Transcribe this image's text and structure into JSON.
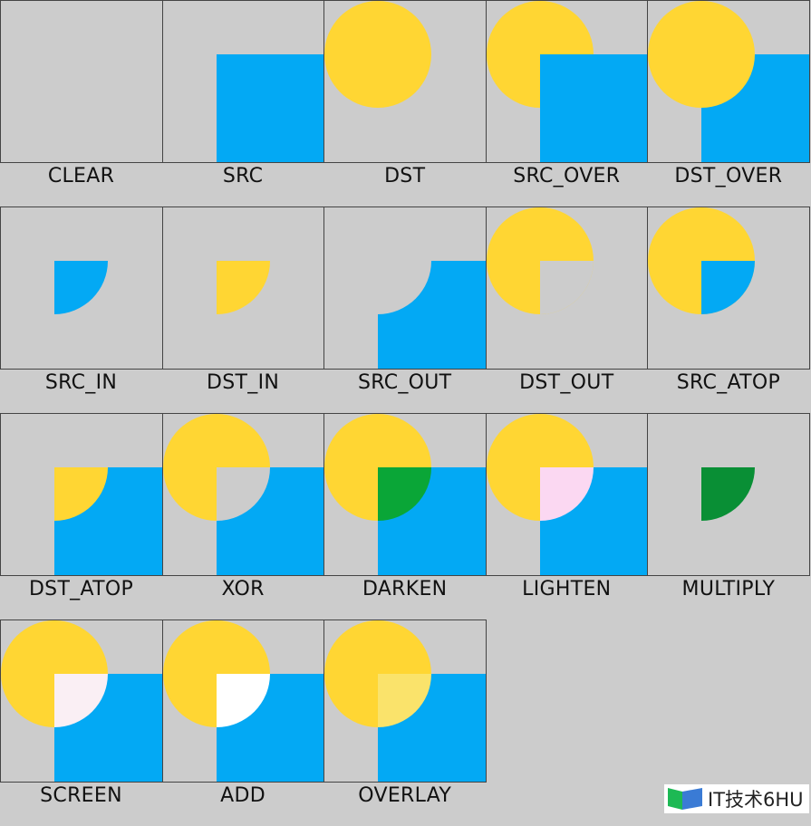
{
  "colors": {
    "background": "#cccccc",
    "dst": "#FFD633",
    "src": "#03A9F4",
    "border": "#444444"
  },
  "modes": [
    {
      "label": "CLEAR",
      "layers": []
    },
    {
      "label": "SRC",
      "layers": [
        [
          "square",
          "#03A9F4"
        ]
      ]
    },
    {
      "label": "DST",
      "layers": [
        [
          "circle",
          "#FFD633"
        ]
      ]
    },
    {
      "label": "SRC_OVER",
      "layers": [
        [
          "circle",
          "#FFD633"
        ],
        [
          "square",
          "#03A9F4"
        ]
      ]
    },
    {
      "label": "DST_OVER",
      "layers": [
        [
          "square",
          "#03A9F4"
        ],
        [
          "circle",
          "#FFD633"
        ]
      ]
    },
    {
      "label": "SRC_IN",
      "layers": [
        [
          "quarter",
          "#03A9F4"
        ]
      ]
    },
    {
      "label": "DST_IN",
      "layers": [
        [
          "quarter",
          "#FFD633"
        ]
      ]
    },
    {
      "label": "SRC_OUT",
      "layers": [
        [
          "square",
          "#03A9F4"
        ],
        [
          "quarter",
          "#cccccc"
        ]
      ]
    },
    {
      "label": "DST_OUT",
      "layers": [
        [
          "circle",
          "#FFD633"
        ],
        [
          "quarter",
          "#cccccc"
        ]
      ]
    },
    {
      "label": "SRC_ATOP",
      "layers": [
        [
          "circle",
          "#FFD633"
        ],
        [
          "quarter",
          "#03A9F4"
        ]
      ]
    },
    {
      "label": "DST_ATOP",
      "layers": [
        [
          "square",
          "#03A9F4"
        ],
        [
          "quarter",
          "#FFD633"
        ]
      ]
    },
    {
      "label": "XOR",
      "layers": [
        [
          "circle",
          "#FFD633"
        ],
        [
          "square",
          "#03A9F4"
        ],
        [
          "quarter",
          "#cccccc"
        ]
      ]
    },
    {
      "label": "DARKEN",
      "layers": [
        [
          "circle",
          "#FFD633"
        ],
        [
          "square",
          "#03A9F4"
        ],
        [
          "quarter",
          "#0AA637"
        ]
      ]
    },
    {
      "label": "LIGHTEN",
      "layers": [
        [
          "circle",
          "#FFD633"
        ],
        [
          "square",
          "#03A9F4"
        ],
        [
          "quarter",
          "#FBD8F2"
        ]
      ]
    },
    {
      "label": "MULTIPLY",
      "layers": [
        [
          "quarter",
          "#098F35"
        ]
      ]
    },
    {
      "label": "SCREEN",
      "layers": [
        [
          "circle",
          "#FFD633"
        ],
        [
          "square",
          "#03A9F4"
        ],
        [
          "quarter",
          "#FAEFF4"
        ]
      ]
    },
    {
      "label": "ADD",
      "layers": [
        [
          "circle",
          "#FFD633"
        ],
        [
          "square",
          "#03A9F4"
        ],
        [
          "quarter",
          "#FFFFFF"
        ]
      ]
    },
    {
      "label": "OVERLAY",
      "layers": [
        [
          "circle",
          "#FFD633"
        ],
        [
          "square",
          "#03A9F4"
        ],
        [
          "quarter",
          "#FAE36B"
        ]
      ]
    }
  ],
  "watermark": {
    "text": "IT技术6HU"
  }
}
